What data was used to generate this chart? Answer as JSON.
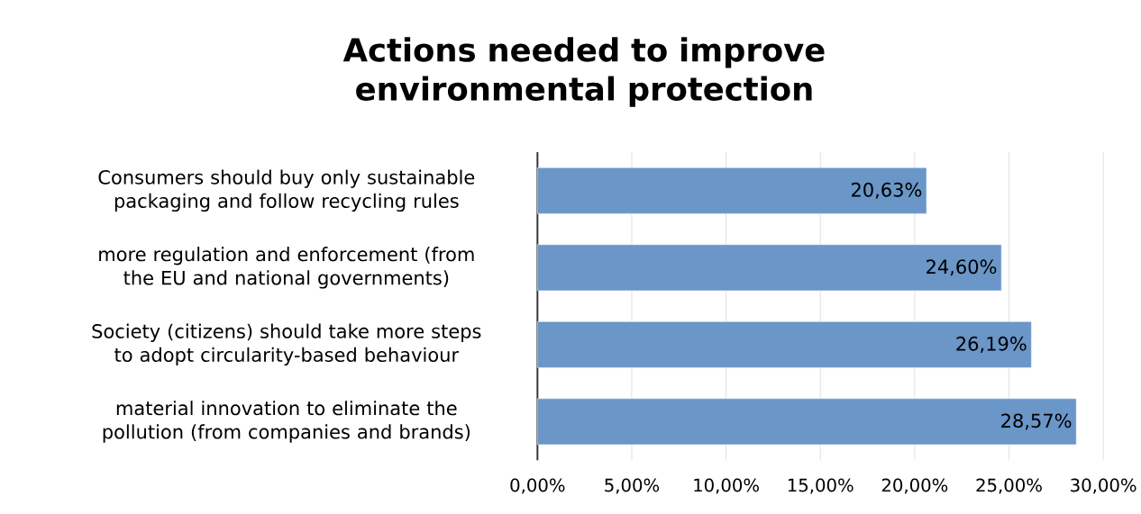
{
  "chart_data": {
    "type": "bar",
    "orientation": "horizontal",
    "title": "Actions needed to improve environmental protection",
    "categories": [
      "Consumers should buy only sustainable packaging and follow recycling rules",
      "more regulation and enforcement (from the EU and national governments)",
      "Society (citizens) should take more steps to adopt circularity-based behaviour",
      "material innovation to eliminate the pollution (from companies and brands)"
    ],
    "values": [
      20.63,
      24.6,
      26.19,
      28.57
    ],
    "value_labels": [
      "20,63%",
      "24,60%",
      "26,19%",
      "28,57%"
    ],
    "color": "#6a96c8",
    "xlim": [
      0,
      30
    ],
    "xticks": [
      {
        "value": 0,
        "label": "0,00%"
      },
      {
        "value": 5,
        "label": "5,00%"
      },
      {
        "value": 10,
        "label": "10,00%"
      },
      {
        "value": 15,
        "label": "15,00%"
      },
      {
        "value": 20,
        "label": "20,00%"
      },
      {
        "value": 25,
        "label": "25,00%"
      },
      {
        "value": 30,
        "label": "30,00%"
      }
    ],
    "grid": "x"
  }
}
